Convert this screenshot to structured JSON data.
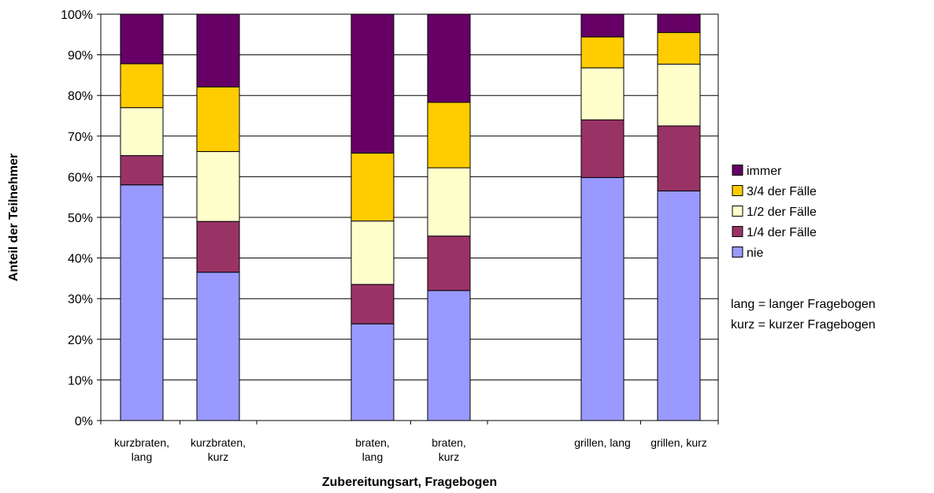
{
  "chart_data": {
    "type": "bar",
    "stacked": true,
    "percent_stacked": true,
    "categories": [
      [
        "kurzbraten,",
        "lang"
      ],
      [
        "kurzbraten,",
        "kurz"
      ],
      [
        "braten,",
        "lang"
      ],
      [
        "braten,",
        "kurz"
      ],
      [
        "grillen, lang"
      ],
      [
        "grillen, kurz"
      ]
    ],
    "category_groups": [
      [
        0,
        1
      ],
      [
        2,
        3
      ],
      [
        4,
        5
      ]
    ],
    "series": [
      {
        "name": "nie",
        "color": "#9999ff",
        "values": [
          58.0,
          36.5,
          23.8,
          32.0,
          59.8,
          56.5
        ]
      },
      {
        "name": "1/4 der Fälle",
        "color": "#993366",
        "values": [
          7.2,
          12.5,
          9.7,
          13.4,
          14.2,
          16.0
        ]
      },
      {
        "name": "1/2 der Fälle",
        "color": "#ffffcc",
        "values": [
          11.8,
          17.2,
          15.6,
          16.8,
          12.8,
          15.2
        ]
      },
      {
        "name": "3/4 der Fälle",
        "color": "#ffcc00",
        "values": [
          10.8,
          15.9,
          16.7,
          16.1,
          7.6,
          7.8
        ]
      },
      {
        "name": "immer",
        "color": "#660066",
        "values": [
          12.2,
          17.9,
          34.2,
          21.7,
          5.6,
          4.5
        ]
      }
    ],
    "ylim": [
      0,
      100
    ],
    "yticks": [
      "0%",
      "10%",
      "20%",
      "30%",
      "40%",
      "50%",
      "60%",
      "70%",
      "80%",
      "90%",
      "100%"
    ],
    "xlabel": "Zubereitungsart, Fragebogen",
    "ylabel": "Anteil der Teilnehmer",
    "grid": true,
    "legend_position": "right",
    "legend_order": [
      "immer",
      "3/4 der Fälle",
      "1/2 der Fälle",
      "1/4 der Fälle",
      "nie"
    ],
    "notes": [
      "lang = langer Fragebogen",
      "kurz = kurzer Fragebogen"
    ]
  }
}
